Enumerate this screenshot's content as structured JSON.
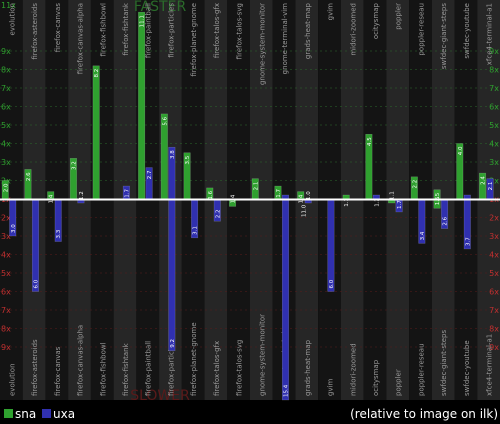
{
  "chart_data": {
    "type": "bar",
    "layout": "mirrored",
    "top_panel_label": "FASTER",
    "bottom_panel_label": "SLOWER",
    "y_ticks": [
      "1x",
      "2x",
      "3x",
      "4x",
      "5x",
      "6x",
      "7x",
      "8x",
      "9x"
    ],
    "top_max_label": "11x",
    "y_range": [
      1,
      10
    ],
    "categories": [
      "evolution",
      "firefox-asteroids",
      "firefox-canvas",
      "firefox-canvas-alpha",
      "firefox-fishbowl",
      "firefox-fishtank",
      "firefox-paintball",
      "firefox-particles",
      "firefox-planet-gnome",
      "firefox-talos-gfx",
      "firefox-talos-svg",
      "gnome-system-monitor",
      "gnome-terminal-vim",
      "grads-heat-map",
      "gvim",
      "midori-zoomed",
      "ocitysmap",
      "poppler",
      "poppler-reseau",
      "swfdec-giant-steps",
      "swfdec-youtube",
      "xfce4-terminal-a1"
    ],
    "series": [
      {
        "name": "sna",
        "color": "#2fa02f",
        "faster": [
          2.0,
          2.6,
          1.4,
          3.2,
          8.2,
          null,
          11.1,
          5.6,
          3.5,
          1.6,
          null,
          2.1,
          1.7,
          1.4,
          null,
          1.1,
          4.5,
          null,
          2.2,
          1.5,
          4.0,
          2.4
        ],
        "slower": [
          null,
          null,
          null,
          null,
          null,
          null,
          null,
          null,
          null,
          null,
          1.4,
          null,
          null,
          null,
          null,
          null,
          null,
          1.1,
          null,
          1.5,
          null,
          null
        ],
        "faster_labels": [
          "2.0",
          "2.6",
          "1.4",
          "3.2",
          "8.2",
          "",
          "11.1",
          "5.6",
          "3.5",
          "1.6",
          "",
          "2.1",
          "1.7",
          "1.4",
          "",
          "1.1",
          "4.5",
          "",
          "2.2",
          "1.5",
          "4.0",
          "2.4"
        ],
        "slower_labels": [
          "",
          "",
          "",
          "",
          "",
          "",
          "",
          "",
          "",
          "",
          "1.4",
          "",
          "",
          "",
          "",
          "",
          "",
          "1.1",
          "",
          "1.5",
          "",
          ""
        ]
      },
      {
        "name": "uxa",
        "color": "#3030b0",
        "faster": [
          null,
          null,
          null,
          null,
          null,
          1.7,
          2.7,
          3.8,
          null,
          null,
          null,
          null,
          1.1,
          null,
          null,
          null,
          1.2,
          null,
          null,
          null,
          1.1,
          2.1
        ],
        "slower": [
          3.0,
          6.0,
          3.3,
          1.2,
          null,
          null,
          null,
          9.2,
          3.1,
          2.2,
          null,
          null,
          15.4,
          1.0,
          6.0,
          null,
          null,
          1.7,
          3.4,
          2.6,
          3.7,
          null
        ],
        "faster_labels": [
          "",
          "",
          "",
          "",
          "",
          "1.7",
          "2.7",
          "3.8",
          "",
          "",
          "",
          "",
          "1.1",
          "",
          "",
          "",
          "1.2",
          "",
          "",
          "",
          "1.1",
          "2.1"
        ],
        "slower_labels": [
          "3.0",
          "6.0",
          "3.3",
          "1.2",
          "",
          "",
          "",
          "9.2",
          "3.1",
          "2.2",
          "",
          "",
          "15.4",
          "1.0",
          "6.0",
          "",
          "",
          "1.7",
          "3.4",
          "2.6",
          "3.7",
          ""
        ]
      }
    ],
    "extra_labels": {
      "grads-heat-map": "11.0"
    },
    "legend": {
      "placement": "bottom-left",
      "entries": [
        "sna",
        "uxa"
      ],
      "note": "(relative to image on ilk)"
    },
    "colors": {
      "background": "#000000",
      "column_dark": "#141414",
      "column_light": "#262626",
      "top_tick": "#2fa02f",
      "bottom_tick": "#c03030",
      "grid": "#2a6a2a",
      "label": "#9a9a9a"
    }
  }
}
